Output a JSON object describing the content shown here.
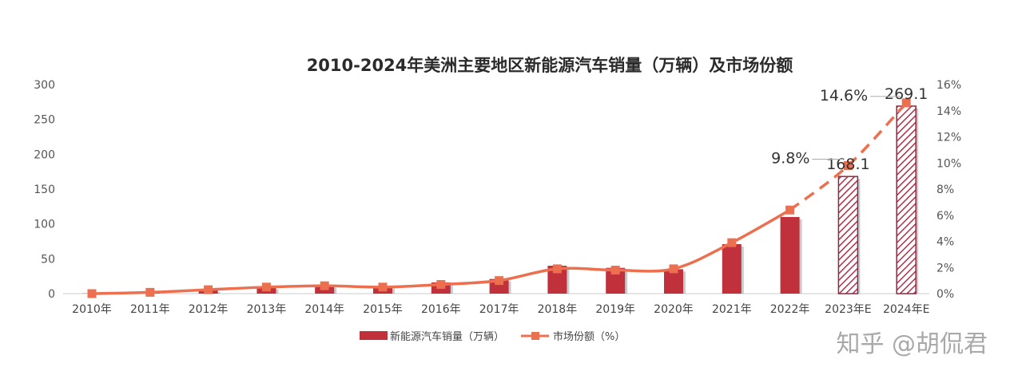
{
  "chart_data": {
    "type": "bar",
    "title": "2010-2024年美洲主要地区新能源汽车销量（万辆）及市场份额",
    "categories": [
      "2010年",
      "2011年",
      "2012年",
      "2013年",
      "2014年",
      "2015年",
      "2016年",
      "2017年",
      "2018年",
      "2019年",
      "2020年",
      "2021年",
      "2022年",
      "2023年E",
      "2024年E"
    ],
    "series": [
      {
        "name": "新能源汽车销量（万辆）",
        "type": "bar",
        "axis": "left",
        "color": "#c0313b",
        "values": [
          0.3,
          1.8,
          5.5,
          10,
          12,
          11,
          16,
          21,
          40,
          37,
          35,
          71,
          110,
          168.1,
          269.1
        ],
        "estimated": [
          false,
          false,
          false,
          false,
          false,
          false,
          false,
          false,
          false,
          false,
          false,
          false,
          false,
          true,
          true
        ]
      },
      {
        "name": "市场份额（%）",
        "type": "line",
        "axis": "right",
        "color": "#ec6f4f",
        "values": [
          0.0,
          0.1,
          0.3,
          0.5,
          0.6,
          0.5,
          0.7,
          1.0,
          1.9,
          1.8,
          1.9,
          3.9,
          6.4,
          9.8,
          14.6
        ],
        "dashed_from_index": 12
      }
    ],
    "ylim_left": [
      0,
      300
    ],
    "yticks_left": [
      0,
      50,
      100,
      150,
      200,
      250,
      300
    ],
    "ylim_right": [
      0,
      16
    ],
    "yticks_right": [
      "0%",
      "2%",
      "4%",
      "6%",
      "8%",
      "10%",
      "12%",
      "14%",
      "16%"
    ],
    "data_labels": {
      "bars": [
        {
          "index": 13,
          "text": "168.1"
        },
        {
          "index": 14,
          "text": "269.1"
        }
      ],
      "line": [
        {
          "index": 13,
          "text": "9.8%"
        },
        {
          "index": 14,
          "text": "14.6%"
        }
      ]
    },
    "legend": {
      "position": "bottom",
      "items": [
        "新能源汽车销量（万辆）",
        "市场份额（%）"
      ]
    },
    "grid": false
  },
  "watermark": "知乎 @胡侃君"
}
